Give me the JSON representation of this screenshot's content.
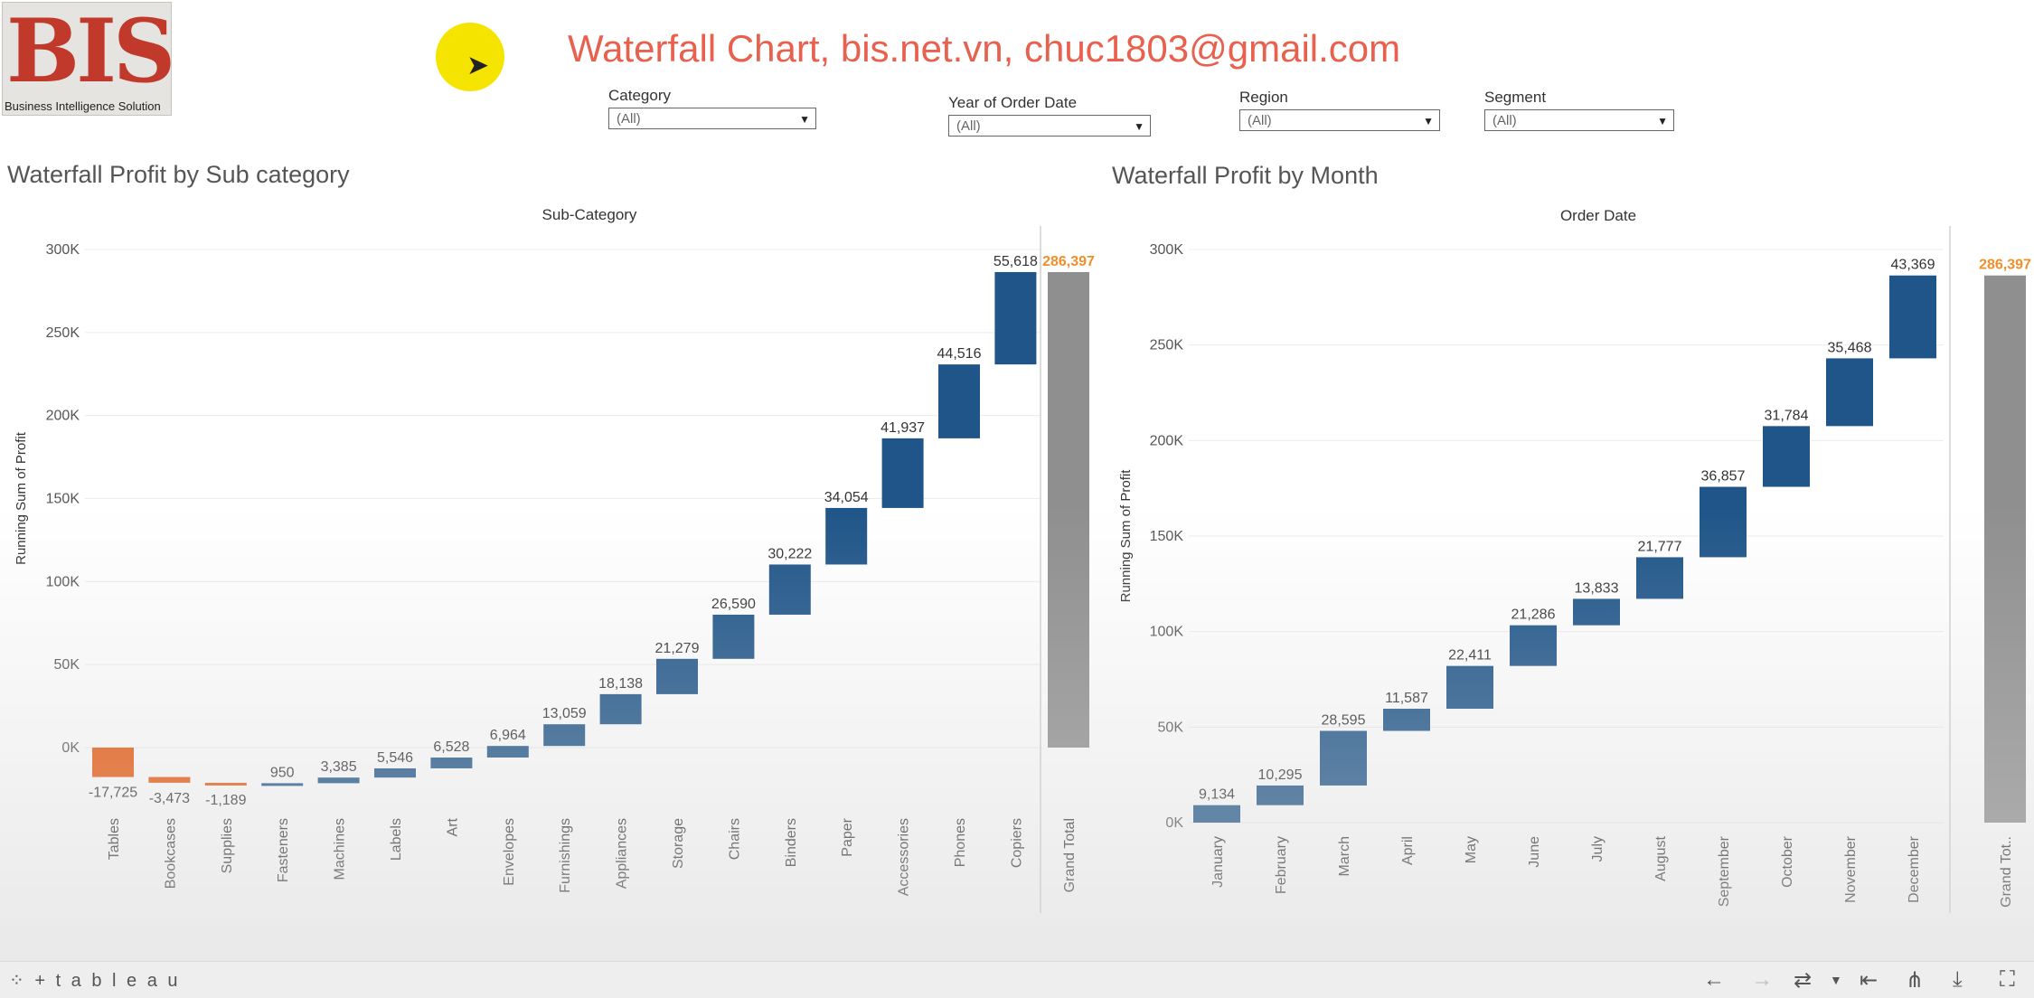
{
  "logo": {
    "text": "BIS",
    "subtitle": "Business Intelligence Solution"
  },
  "dashboard_title": "Waterfall Chart, bis.net.vn, chuc1803@gmail.com",
  "filters": [
    {
      "label": "Category",
      "value": "(All)"
    },
    {
      "label": "Year of Order Date",
      "value": "(All)"
    },
    {
      "label": "Region",
      "value": "(All)"
    },
    {
      "label": "Segment",
      "value": "(All)"
    }
  ],
  "sheets": [
    {
      "title": "Waterfall Profit by Sub category"
    },
    {
      "title": "Waterfall  Profit by Month"
    }
  ],
  "colors": {
    "positive": "#1f5589",
    "negative": "#e8570c",
    "total": "#8f8f8f",
    "total_label": "#f28e2b"
  },
  "chart_data": [
    {
      "type": "bar",
      "subtype": "waterfall",
      "header": "Sub-Category",
      "ylabel": "Running Sum of Profit",
      "ylim": [
        -30000,
        300000
      ],
      "yticks": [
        "300K",
        "250K",
        "200K",
        "150K",
        "100K",
        "50K",
        "0K"
      ],
      "categories": [
        "Tables",
        "Bookcases",
        "Supplies",
        "Fasteners",
        "Machines",
        "Labels",
        "Art",
        "Envelopes",
        "Furnishings",
        "Appliances",
        "Storage",
        "Chairs",
        "Binders",
        "Paper",
        "Accessories",
        "Phones",
        "Copiers"
      ],
      "values": [
        -17725,
        -3473,
        -1189,
        950,
        3385,
        5546,
        6528,
        6964,
        13059,
        18138,
        21279,
        26590,
        30222,
        34054,
        41937,
        44516,
        55618
      ],
      "labels": [
        "-17,725",
        "-3,473",
        "-1,189",
        "950",
        "3,385",
        "5,546",
        "6,528",
        "6,964",
        "13,059",
        "18,138",
        "21,279",
        "26,590",
        "30,222",
        "34,054",
        "41,937",
        "44,516",
        "55,618"
      ],
      "total": {
        "label": "Grand Total",
        "value": 286397,
        "text": "286,397"
      }
    },
    {
      "type": "bar",
      "subtype": "waterfall",
      "header": "Order Date",
      "ylabel": "Running Sum of Profit",
      "ylim": [
        -5000,
        300000
      ],
      "yticks": [
        "300K",
        "250K",
        "200K",
        "150K",
        "100K",
        "50K",
        "0K"
      ],
      "categories": [
        "January",
        "February",
        "March",
        "April",
        "May",
        "June",
        "July",
        "August",
        "September",
        "October",
        "November",
        "December"
      ],
      "values": [
        9134,
        10295,
        28595,
        11587,
        22411,
        21286,
        13833,
        21777,
        36857,
        31784,
        35468,
        43369
      ],
      "labels": [
        "9,134",
        "10,295",
        "28,595",
        "11,587",
        "22,411",
        "21,286",
        "13,833",
        "21,777",
        "36,857",
        "31,784",
        "35,468",
        "43,369"
      ],
      "total": {
        "label": "Grand Tot..",
        "value": 286397,
        "text": "286,397"
      }
    }
  ],
  "footer": {
    "brand": "+ t a b l e a u"
  }
}
